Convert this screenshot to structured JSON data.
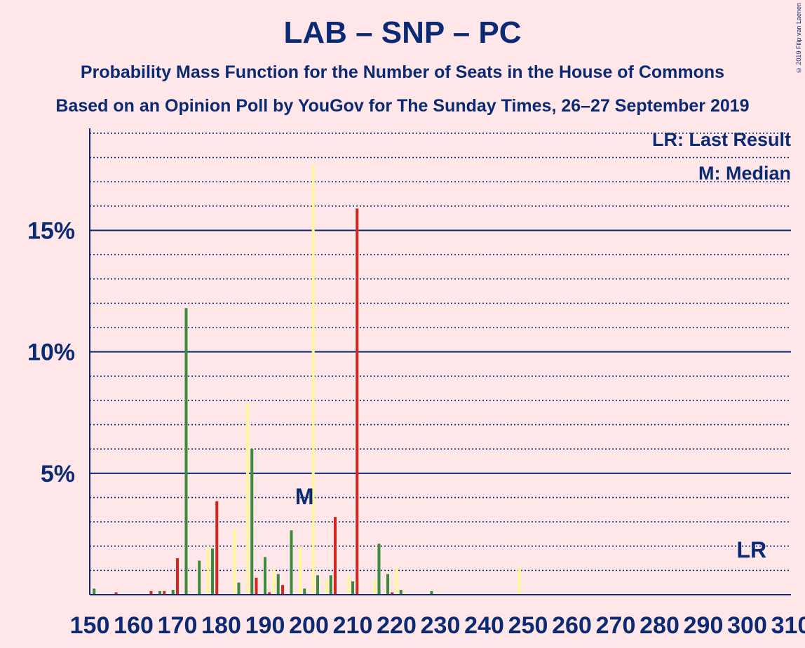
{
  "title": "LAB – SNP – PC",
  "subtitle": "Probability Mass Function for the Number of Seats in the House of Commons",
  "subtitle2": "Based on an Opinion Poll by YouGov for The Sunday Times, 26–27 September 2019",
  "copyright": "© 2019 Filip van Laenen",
  "legend": {
    "last_result": "LR: Last Result",
    "median": "M: Median"
  },
  "colors": {
    "background": "#FFE6E9",
    "axis": "#0B2A74",
    "green": "#3C8A3A",
    "red": "#D4261D",
    "yellow": "#FFF59A"
  },
  "chart_data": {
    "type": "bar",
    "ylim": [
      0,
      19.2
    ],
    "xlim": [
      150,
      310
    ],
    "x_ticks": [
      150,
      160,
      170,
      180,
      190,
      200,
      210,
      220,
      230,
      240,
      250,
      260,
      270,
      280,
      290,
      300,
      310
    ],
    "y_ticks": [
      {
        "value": 5,
        "label": "5%"
      },
      {
        "value": 10,
        "label": "10%"
      },
      {
        "value": 15,
        "label": "15%"
      }
    ],
    "median_label": "M",
    "median_seat": 199,
    "median_label_value": 4.1,
    "last_result_label": "LR",
    "last_result_seat": 301,
    "last_result_label_value": 1.9,
    "bars": [
      {
        "x": 151,
        "c": "g",
        "v": 0.25
      },
      {
        "x": 154,
        "c": "y",
        "v": 0.05
      },
      {
        "x": 156,
        "c": "r",
        "v": 0.1
      },
      {
        "x": 160,
        "c": "y",
        "v": 0.05
      },
      {
        "x": 164,
        "c": "r",
        "v": 0.15
      },
      {
        "x": 166,
        "c": "g",
        "v": 0.15
      },
      {
        "x": 167,
        "c": "r",
        "v": 0.15
      },
      {
        "x": 169,
        "c": "g",
        "v": 0.2
      },
      {
        "x": 170,
        "c": "r",
        "v": 1.5
      },
      {
        "x": 172,
        "c": "g",
        "v": 11.8
      },
      {
        "x": 175,
        "c": "g",
        "v": 1.4
      },
      {
        "x": 177,
        "c": "y",
        "v": 2.0
      },
      {
        "x": 178,
        "c": "g",
        "v": 1.9
      },
      {
        "x": 179,
        "c": "r",
        "v": 3.85
      },
      {
        "x": 183,
        "c": "y",
        "v": 2.7
      },
      {
        "x": 184,
        "c": "g",
        "v": 0.5
      },
      {
        "x": 186,
        "c": "y",
        "v": 7.9
      },
      {
        "x": 187,
        "c": "g",
        "v": 6.0
      },
      {
        "x": 188,
        "c": "r",
        "v": 0.7
      },
      {
        "x": 190,
        "c": "g",
        "v": 1.55
      },
      {
        "x": 191,
        "c": "r",
        "v": 0.1
      },
      {
        "x": 192,
        "c": "y",
        "v": 1.05
      },
      {
        "x": 193,
        "c": "g",
        "v": 0.85
      },
      {
        "x": 194,
        "c": "r",
        "v": 0.4
      },
      {
        "x": 196,
        "c": "g",
        "v": 2.65
      },
      {
        "x": 198,
        "c": "y",
        "v": 2.0
      },
      {
        "x": 199,
        "c": "g",
        "v": 0.25
      },
      {
        "x": 201,
        "c": "y",
        "v": 17.7
      },
      {
        "x": 202,
        "c": "g",
        "v": 0.8
      },
      {
        "x": 204,
        "c": "y",
        "v": 0.6
      },
      {
        "x": 205,
        "c": "g",
        "v": 0.8
      },
      {
        "x": 206,
        "c": "r",
        "v": 3.2
      },
      {
        "x": 209,
        "c": "y",
        "v": 0.8
      },
      {
        "x": 210,
        "c": "g",
        "v": 0.55
      },
      {
        "x": 211,
        "c": "r",
        "v": 15.9
      },
      {
        "x": 215,
        "c": "y",
        "v": 0.6
      },
      {
        "x": 216,
        "c": "g",
        "v": 2.1
      },
      {
        "x": 218,
        "c": "g",
        "v": 0.85
      },
      {
        "x": 219,
        "c": "r",
        "v": 0.1
      },
      {
        "x": 220,
        "c": "y",
        "v": 1.1
      },
      {
        "x": 221,
        "c": "g",
        "v": 0.2
      },
      {
        "x": 222,
        "c": "y",
        "v": 0.1
      },
      {
        "x": 228,
        "c": "g",
        "v": 0.15
      },
      {
        "x": 230,
        "c": "y",
        "v": 0.1
      },
      {
        "x": 248,
        "c": "y",
        "v": 1.15
      }
    ]
  }
}
